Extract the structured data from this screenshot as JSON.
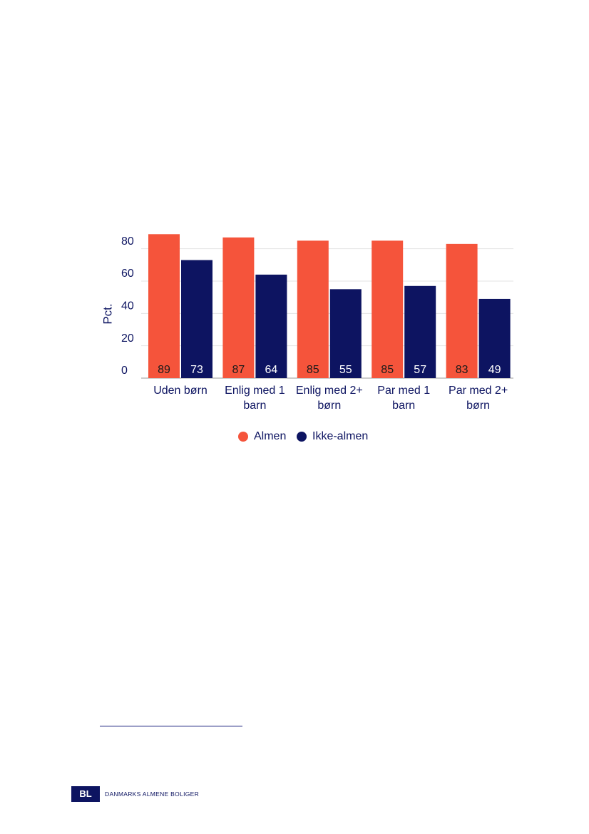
{
  "chart_data": {
    "type": "bar",
    "y_label": "Pct.",
    "categories": [
      "Uden børn",
      "Enlig med 1 barn",
      "Enlig med 2+ børn",
      "Par med 1 barn",
      "Par med 2+ børn"
    ],
    "series": [
      {
        "name": "Almen",
        "color": "#f5543b",
        "values": [
          89,
          87,
          85,
          85,
          83
        ]
      },
      {
        "name": "Ikke-almen",
        "color": "#0d1461",
        "values": [
          73,
          64,
          55,
          57,
          49
        ]
      }
    ],
    "ylim": [
      0,
      90
    ],
    "yticks": [
      0,
      20,
      40,
      60,
      80
    ],
    "grid": true,
    "legend": "bottom"
  },
  "footer": {
    "logo": "BL",
    "name": "DANMARKS ALMENE BOLIGER"
  }
}
